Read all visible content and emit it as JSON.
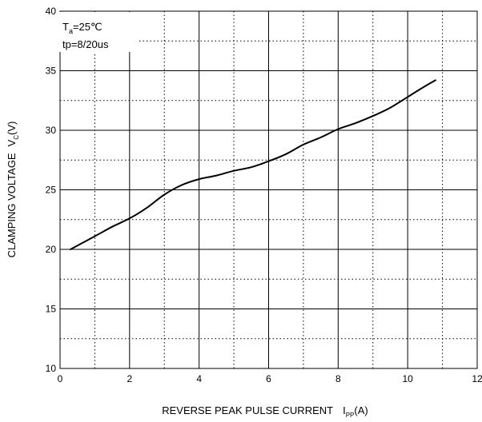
{
  "chart_data": {
    "type": "line",
    "title": "",
    "xlabel": {
      "main": "REVERSE PEAK PULSE CURRENT",
      "symbol": "I",
      "subscript": "PP",
      "unit": "(A)"
    },
    "ylabel": {
      "main": "CLAMPING VOLTAGE",
      "symbol": "V",
      "subscript": "C",
      "unit": "(V)"
    },
    "xlim": [
      0,
      12
    ],
    "ylim": [
      10,
      40
    ],
    "x_ticks": [
      "0",
      "2",
      "4",
      "6",
      "8",
      "10",
      "12"
    ],
    "y_ticks": [
      "10",
      "15",
      "20",
      "25",
      "30",
      "35",
      "40"
    ],
    "grid": {
      "major": "solid",
      "minor": "dotted"
    },
    "annotation": {
      "line1": {
        "symbol": "T",
        "subscript": "a",
        "text": "=25℃"
      },
      "line2": "tp=8/20us"
    },
    "series": [
      {
        "x": [
          0.3,
          1.0,
          1.5,
          2.0,
          2.5,
          3.0,
          3.5,
          4.0,
          4.5,
          5.0,
          5.5,
          6.0,
          6.5,
          7.0,
          7.5,
          8.0,
          8.5,
          9.0,
          9.5,
          10.0,
          10.5,
          10.8
        ],
        "y": [
          20.0,
          21.1,
          21.9,
          22.6,
          23.5,
          24.6,
          25.4,
          25.9,
          26.2,
          26.6,
          26.9,
          27.4,
          28.0,
          28.8,
          29.4,
          30.1,
          30.6,
          31.2,
          31.9,
          32.8,
          33.7,
          34.2
        ]
      }
    ]
  }
}
